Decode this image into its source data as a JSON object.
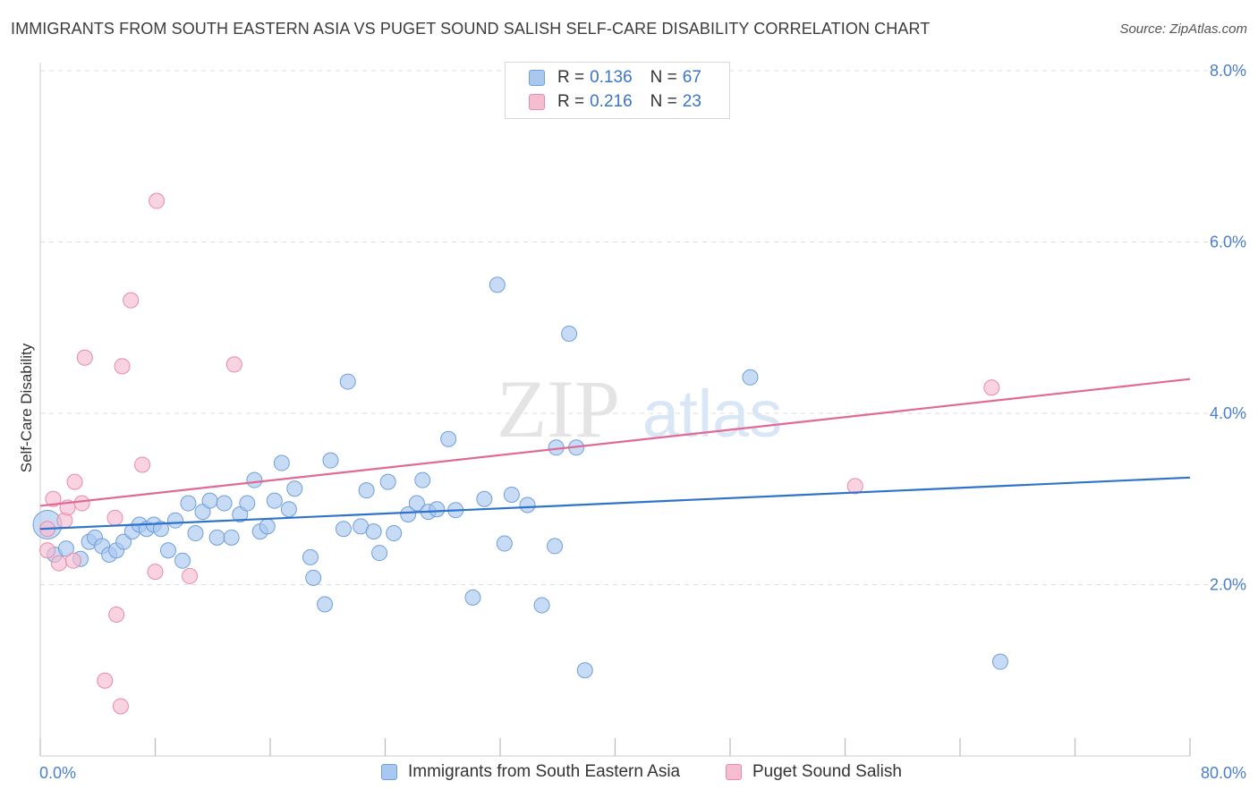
{
  "title": "IMMIGRANTS FROM SOUTH EASTERN ASIA VS PUGET SOUND SALISH SELF-CARE DISABILITY CORRELATION CHART",
  "source": "Source: ZipAtlas.com",
  "watermark": {
    "zip": "ZIP",
    "atlas": "atlas"
  },
  "legend": {
    "rows": [
      {
        "r_label": "R =",
        "r_value": "0.136",
        "n_label": "N =",
        "n_value": "67"
      },
      {
        "r_label": "R =",
        "r_value": "0.216",
        "n_label": "N =",
        "n_value": "23"
      }
    ]
  },
  "bottom_legend": {
    "series1": "Immigrants from South Eastern Asia",
    "series2": "Puget Sound Salish"
  },
  "colors": {
    "series1_fill": "#a9c8f0",
    "series1_stroke": "#6f9fdc",
    "series1_line": "#2f73cc",
    "series2_fill": "#f6bcd0",
    "series2_stroke": "#e88aac",
    "series2_line": "#e06a95",
    "grid": "#dddddd",
    "tick_text": "#4a7fcf"
  },
  "chart_data": {
    "type": "scatter",
    "title": "IMMIGRANTS FROM SOUTH EASTERN ASIA VS PUGET SOUND SALISH SELF-CARE DISABILITY CORRELATION CHART",
    "xlabel": "",
    "ylabel": "Self-Care Disability",
    "xlim": [
      0,
      80
    ],
    "ylim": [
      0,
      8.3
    ],
    "x_tick_labels": [
      "0.0%",
      "80.0%"
    ],
    "y_ticks": [
      2,
      4,
      6,
      8
    ],
    "y_tick_labels": [
      "2.0%",
      "4.0%",
      "6.0%",
      "8.0%"
    ],
    "grid": true,
    "legend_position": "top-center",
    "series": [
      {
        "name": "Immigrants from South Eastern Asia",
        "trend": {
          "x": [
            0,
            80
          ],
          "y": [
            2.65,
            3.25
          ]
        },
        "points": [
          [
            0.5,
            2.7
          ],
          [
            1.0,
            2.35
          ],
          [
            1.8,
            2.42
          ],
          [
            2.8,
            2.3
          ],
          [
            3.4,
            2.5
          ],
          [
            3.8,
            2.55
          ],
          [
            4.3,
            2.45
          ],
          [
            4.8,
            2.35
          ],
          [
            5.3,
            2.4
          ],
          [
            5.8,
            2.5
          ],
          [
            6.4,
            2.62
          ],
          [
            6.9,
            2.7
          ],
          [
            7.4,
            2.65
          ],
          [
            7.9,
            2.7
          ],
          [
            8.4,
            2.65
          ],
          [
            8.9,
            2.4
          ],
          [
            9.4,
            2.75
          ],
          [
            9.9,
            2.28
          ],
          [
            10.3,
            2.95
          ],
          [
            10.8,
            2.6
          ],
          [
            11.3,
            2.85
          ],
          [
            11.8,
            2.98
          ],
          [
            12.3,
            2.55
          ],
          [
            12.8,
            2.95
          ],
          [
            13.3,
            2.55
          ],
          [
            13.9,
            2.82
          ],
          [
            14.4,
            2.95
          ],
          [
            14.9,
            3.22
          ],
          [
            15.3,
            2.62
          ],
          [
            15.8,
            2.68
          ],
          [
            16.3,
            2.98
          ],
          [
            16.8,
            3.42
          ],
          [
            17.3,
            2.88
          ],
          [
            17.7,
            3.12
          ],
          [
            18.8,
            2.32
          ],
          [
            19.0,
            2.08
          ],
          [
            19.8,
            1.77
          ],
          [
            20.2,
            3.45
          ],
          [
            21.1,
            2.65
          ],
          [
            21.4,
            4.37
          ],
          [
            22.3,
            2.68
          ],
          [
            22.7,
            3.1
          ],
          [
            23.2,
            2.62
          ],
          [
            23.6,
            2.37
          ],
          [
            24.2,
            3.2
          ],
          [
            24.6,
            2.6
          ],
          [
            25.6,
            2.82
          ],
          [
            26.2,
            2.95
          ],
          [
            26.6,
            3.22
          ],
          [
            27.0,
            2.85
          ],
          [
            27.6,
            2.88
          ],
          [
            28.4,
            3.7
          ],
          [
            28.9,
            2.87
          ],
          [
            30.1,
            1.85
          ],
          [
            30.9,
            3.0
          ],
          [
            31.8,
            5.5
          ],
          [
            32.3,
            2.48
          ],
          [
            32.8,
            3.05
          ],
          [
            33.9,
            2.93
          ],
          [
            34.9,
            1.76
          ],
          [
            35.8,
            2.45
          ],
          [
            35.9,
            3.6
          ],
          [
            36.8,
            4.93
          ],
          [
            37.3,
            3.6
          ],
          [
            37.9,
            1.0
          ],
          [
            49.4,
            4.42
          ],
          [
            66.8,
            1.1
          ]
        ]
      },
      {
        "name": "Puget Sound Salish",
        "trend": {
          "x": [
            0,
            80
          ],
          "y": [
            2.92,
            4.4
          ]
        },
        "points": [
          [
            0.5,
            2.65
          ],
          [
            0.9,
            3.0
          ],
          [
            1.3,
            2.25
          ],
          [
            1.7,
            2.75
          ],
          [
            1.9,
            2.9
          ],
          [
            2.3,
            2.28
          ],
          [
            2.4,
            3.2
          ],
          [
            2.9,
            2.95
          ],
          [
            3.1,
            4.65
          ],
          [
            5.2,
            2.78
          ],
          [
            5.3,
            1.65
          ],
          [
            5.6,
            0.58
          ],
          [
            4.5,
            0.88
          ],
          [
            5.7,
            4.55
          ],
          [
            6.3,
            5.32
          ],
          [
            7.1,
            3.4
          ],
          [
            8.0,
            2.15
          ],
          [
            8.1,
            6.48
          ],
          [
            10.4,
            2.1
          ],
          [
            13.5,
            4.57
          ],
          [
            56.7,
            3.15
          ],
          [
            66.2,
            4.3
          ],
          [
            0.5,
            2.4
          ]
        ]
      }
    ]
  }
}
